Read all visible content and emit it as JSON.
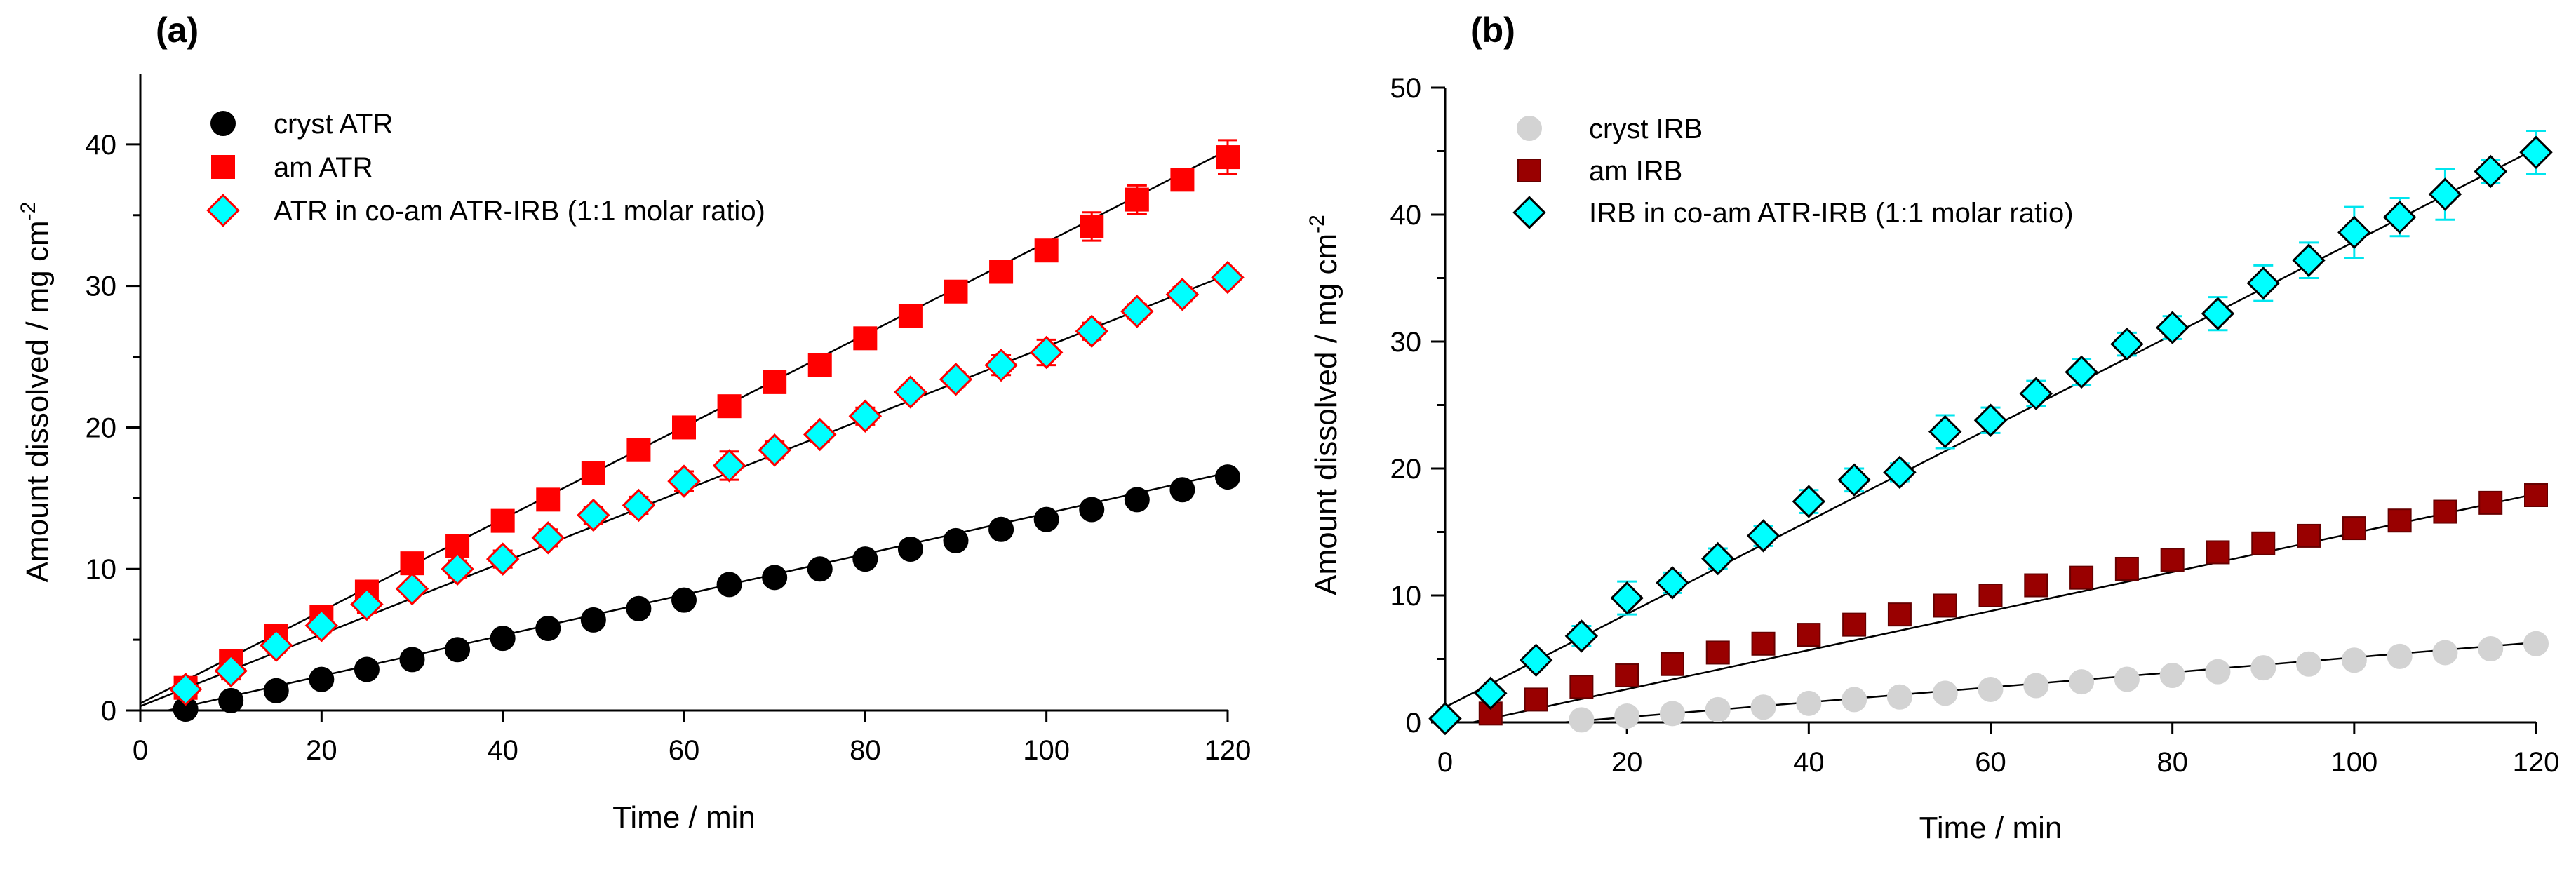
{
  "chart_data": [
    {
      "type": "scatter",
      "panel_label": "(a)",
      "xlabel": "Time / min",
      "ylabel": "Amount dissolved / mg cm",
      "ylabel_superscript": "-2",
      "xlim": [
        0,
        120
      ],
      "ylim": [
        0,
        45
      ],
      "xticks": [
        0,
        20,
        40,
        60,
        80,
        100,
        120
      ],
      "yticks": [
        0,
        10,
        20,
        30,
        40
      ],
      "legend_position": "top-left",
      "series": [
        {
          "name": "cryst ATR",
          "marker": "circle",
          "color": "#000000",
          "edge": "#000000",
          "err_color": "#000000",
          "x": [
            5,
            10,
            15,
            20,
            25,
            30,
            35,
            40,
            45,
            50,
            55,
            60,
            65,
            70,
            75,
            80,
            85,
            90,
            95,
            100,
            105,
            110,
            115,
            120
          ],
          "y": [
            0.1,
            0.7,
            1.4,
            2.2,
            2.9,
            3.6,
            4.3,
            5.1,
            5.8,
            6.4,
            7.2,
            7.8,
            8.9,
            9.4,
            10.0,
            10.7,
            11.4,
            12.0,
            12.8,
            13.5,
            14.2,
            14.9,
            15.6,
            16.5
          ],
          "err": [
            0.2,
            0.2,
            0.2,
            0.2,
            0.2,
            0.2,
            0.2,
            0.2,
            0.2,
            0.2,
            0.2,
            0.2,
            0.2,
            0.2,
            0.2,
            0.2,
            0.2,
            0.2,
            0.2,
            0.2,
            0.2,
            0.2,
            0.2,
            0.3
          ],
          "fit": [
            [
              3,
              0
            ],
            [
              120,
              16.8
            ]
          ]
        },
        {
          "name": "am ATR",
          "marker": "square",
          "color": "#ff0000",
          "edge": "#ff0000",
          "err_color": "#ff0000",
          "x": [
            5,
            10,
            15,
            20,
            25,
            30,
            35,
            40,
            45,
            50,
            55,
            60,
            65,
            70,
            75,
            80,
            85,
            90,
            95,
            100,
            105,
            110,
            115,
            120
          ],
          "y": [
            1.6,
            3.5,
            5.3,
            6.6,
            8.4,
            10.4,
            11.6,
            13.4,
            14.9,
            16.8,
            18.4,
            20.0,
            21.5,
            23.2,
            24.4,
            26.3,
            27.9,
            29.6,
            31.0,
            32.5,
            34.2,
            36.1,
            37.5,
            39.1
          ],
          "err": [
            0.3,
            0.3,
            0.3,
            0.4,
            0.4,
            0.4,
            0.5,
            0.4,
            0.5,
            0.5,
            0.5,
            0.5,
            0.5,
            0.5,
            0.5,
            0.6,
            0.6,
            0.6,
            0.6,
            0.7,
            1.0,
            1.0,
            0.6,
            1.2
          ],
          "fit": [
            [
              0,
              0.5
            ],
            [
              120,
              39.6
            ]
          ]
        },
        {
          "name": "ATR in co-am ATR-IRB (1:1 molar ratio)",
          "marker": "diamond",
          "color": "#00ffff",
          "edge": "#ff0000",
          "err_color": "#ff0000",
          "x": [
            5,
            10,
            15,
            20,
            25,
            30,
            35,
            40,
            45,
            50,
            55,
            60,
            65,
            70,
            75,
            80,
            85,
            90,
            95,
            100,
            105,
            110,
            115,
            120
          ],
          "y": [
            1.5,
            2.8,
            4.6,
            6.0,
            7.5,
            8.6,
            10.0,
            10.7,
            12.2,
            13.8,
            14.5,
            16.2,
            17.3,
            18.4,
            19.5,
            20.8,
            22.5,
            23.4,
            24.4,
            25.3,
            26.8,
            28.2,
            29.4,
            30.6
          ],
          "err": [
            0.4,
            0.6,
            0.5,
            0.5,
            0.6,
            0.4,
            0.6,
            0.6,
            0.6,
            0.6,
            0.6,
            0.7,
            1.0,
            0.6,
            0.5,
            0.6,
            0.5,
            0.5,
            0.7,
            0.9,
            0.6,
            0.5,
            0.5,
            0.4
          ],
          "fit": [
            [
              0,
              0.3
            ],
            [
              120,
              30.8
            ]
          ]
        }
      ]
    },
    {
      "type": "scatter",
      "panel_label": "(b)",
      "xlabel": "Time / min",
      "ylabel": "Amount dissolved / mg cm",
      "ylabel_superscript": "-2",
      "xlim": [
        0,
        120
      ],
      "ylim": [
        0,
        50
      ],
      "xticks": [
        0,
        20,
        40,
        60,
        80,
        100,
        120
      ],
      "yticks": [
        0,
        10,
        20,
        30,
        40,
        50
      ],
      "legend_position": "top-left",
      "series": [
        {
          "name": "cryst IRB",
          "marker": "circle",
          "color": "#d3d3d3",
          "edge": "#d3d3d3",
          "err_color": "#bbbbbb",
          "x": [
            15,
            20,
            25,
            30,
            35,
            40,
            45,
            50,
            55,
            60,
            65,
            70,
            75,
            80,
            85,
            90,
            95,
            100,
            105,
            110,
            115,
            120
          ],
          "y": [
            0.2,
            0.5,
            0.7,
            1.0,
            1.2,
            1.5,
            1.8,
            2.0,
            2.3,
            2.6,
            2.9,
            3.2,
            3.4,
            3.7,
            4.0,
            4.3,
            4.6,
            4.9,
            5.2,
            5.5,
            5.8,
            6.2
          ],
          "err": [
            0.1,
            0.1,
            0.1,
            0.1,
            0.1,
            0.1,
            0.1,
            0.1,
            0.1,
            0.1,
            0.1,
            0.1,
            0.1,
            0.1,
            0.1,
            0.1,
            0.1,
            0.1,
            0.1,
            0.1,
            0.2,
            0.2
          ],
          "fit": [
            [
              13,
              0
            ],
            [
              120,
              6.3
            ]
          ]
        },
        {
          "name": "am IRB",
          "marker": "square",
          "color": "#990000",
          "edge": "#660000",
          "err_color": "#990000",
          "x": [
            5,
            10,
            15,
            20,
            25,
            30,
            35,
            40,
            45,
            50,
            55,
            60,
            65,
            70,
            75,
            80,
            85,
            90,
            95,
            100,
            105,
            110,
            115,
            120
          ],
          "y": [
            0.7,
            1.8,
            2.8,
            3.7,
            4.6,
            5.5,
            6.2,
            6.9,
            7.7,
            8.5,
            9.2,
            10.0,
            10.8,
            11.4,
            12.1,
            12.8,
            13.4,
            14.1,
            14.7,
            15.3,
            15.9,
            16.6,
            17.3,
            17.9
          ],
          "err": [
            0.2,
            0.2,
            0.2,
            0.2,
            0.2,
            0.2,
            0.2,
            0.2,
            0.2,
            0.2,
            0.2,
            0.2,
            0.2,
            0.2,
            0.2,
            0.2,
            0.2,
            0.3,
            0.3,
            0.3,
            0.3,
            0.4,
            0.3,
            0.4
          ],
          "fit": [
            [
              3,
              0
            ],
            [
              120,
              18.0
            ]
          ]
        },
        {
          "name": "IRB in co-am ATR-IRB (1:1 molar ratio)",
          "marker": "diamond",
          "color": "#00ffff",
          "edge": "#000000",
          "err_color": "#00e5ee",
          "x": [
            0,
            5,
            10,
            15,
            20,
            25,
            30,
            35,
            40,
            45,
            50,
            55,
            60,
            65,
            70,
            75,
            80,
            85,
            90,
            95,
            100,
            105,
            110,
            115,
            120
          ],
          "y": [
            0.3,
            2.3,
            4.9,
            6.8,
            9.8,
            11.0,
            12.9,
            14.7,
            17.4,
            19.1,
            19.7,
            22.9,
            23.8,
            25.9,
            27.6,
            29.8,
            31.1,
            32.2,
            34.6,
            36.4,
            38.6,
            39.8,
            41.6,
            43.4,
            44.9
          ],
          "err": [
            0.2,
            0.5,
            0.6,
            0.8,
            1.3,
            0.8,
            0.8,
            0.8,
            0.9,
            0.9,
            0.7,
            1.3,
            1.0,
            1.0,
            1.0,
            0.9,
            0.9,
            1.3,
            1.4,
            1.4,
            2.0,
            1.5,
            2.0,
            0.9,
            1.7
          ],
          "fit": [
            [
              0,
              1.2
            ],
            [
              120,
              45.2
            ]
          ]
        }
      ]
    }
  ]
}
